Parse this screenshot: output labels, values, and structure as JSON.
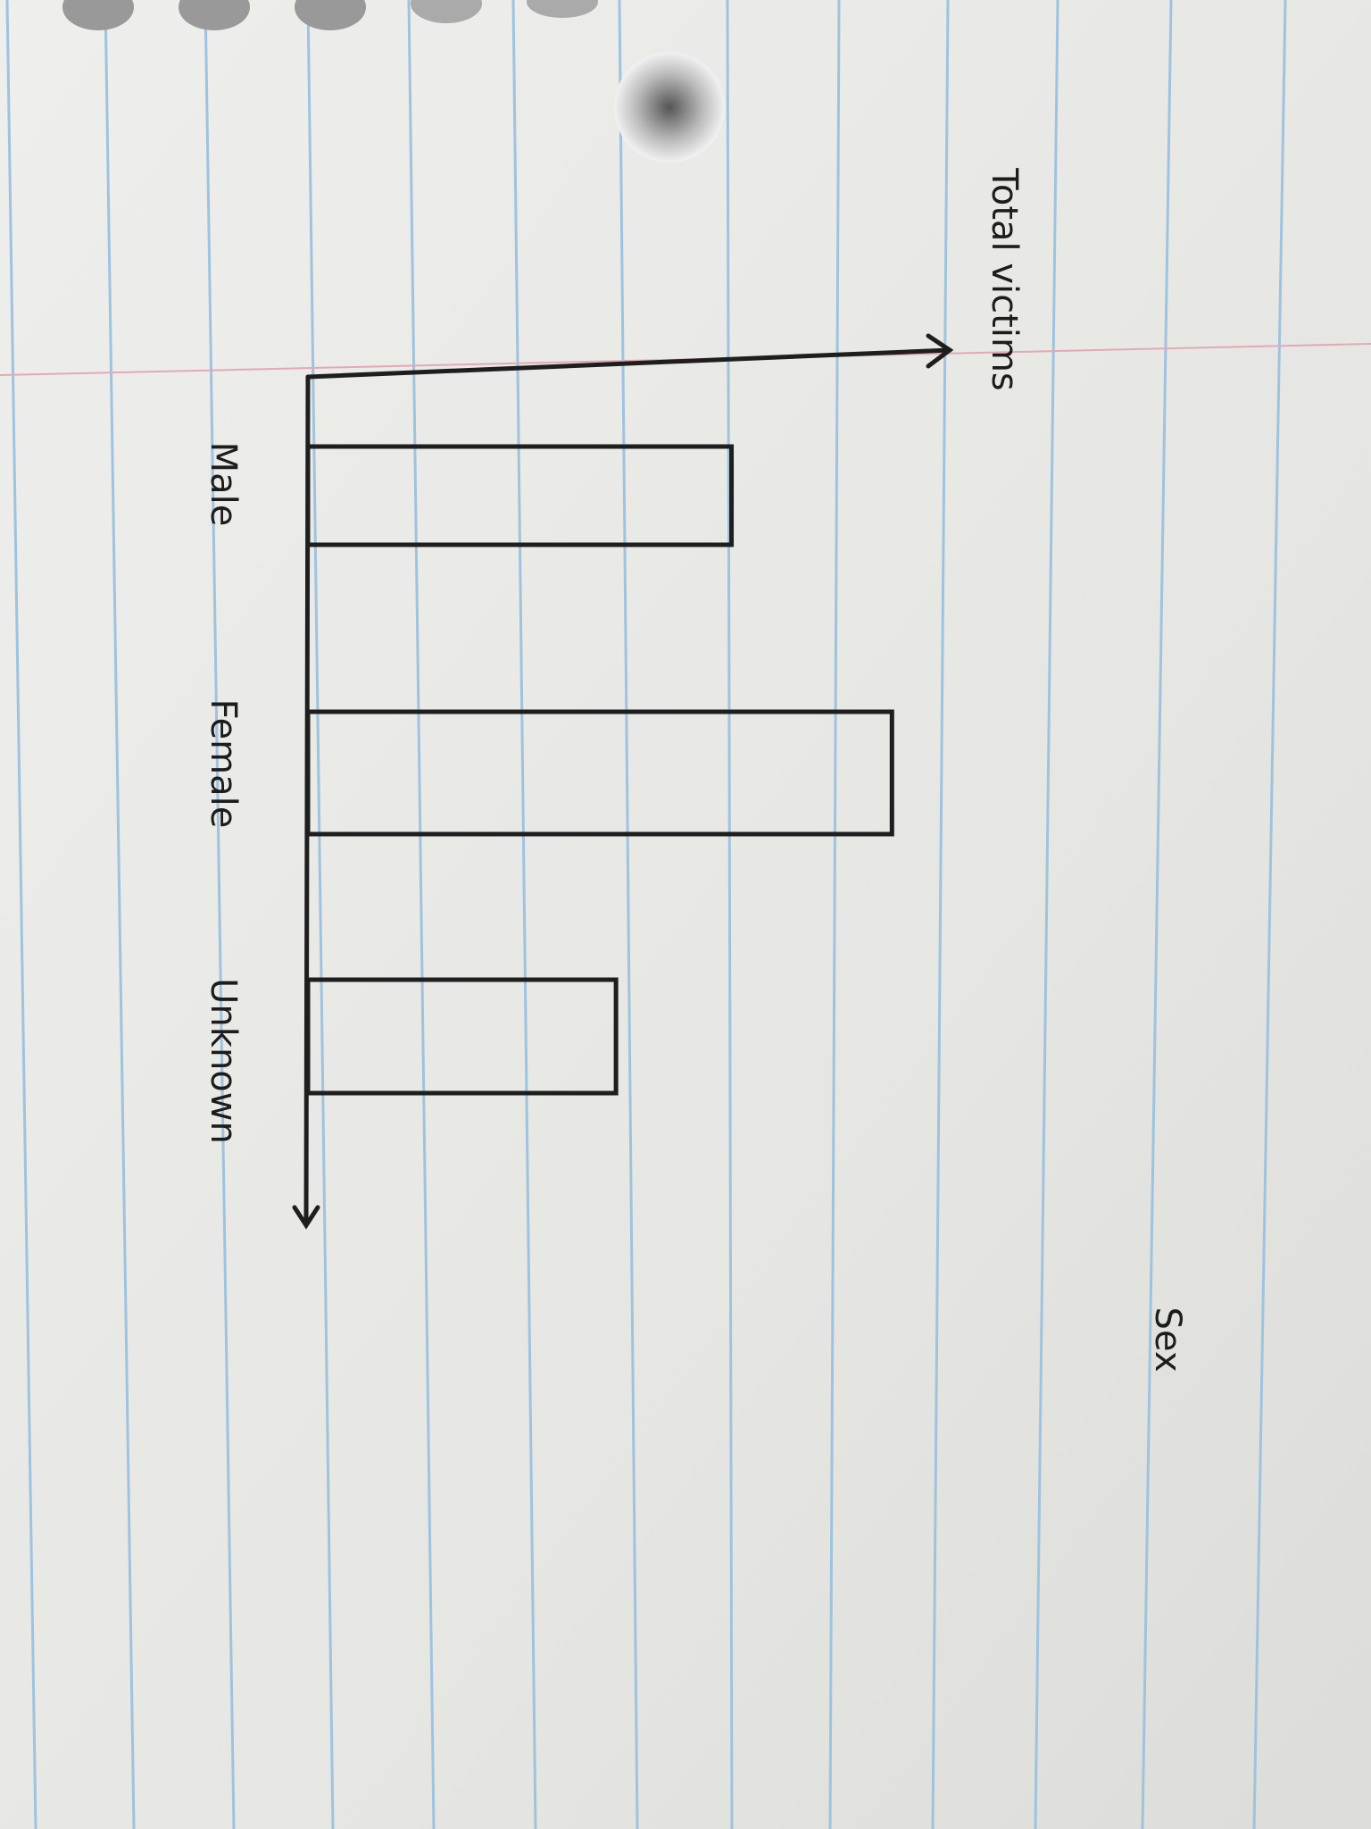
{
  "chart_data": {
    "type": "bar",
    "orientation": "horizontal",
    "title": "Total victims",
    "x_label": "Sex",
    "categories": [
      "Male",
      "Female",
      "Unknown"
    ],
    "values": [
      66,
      91,
      48
    ],
    "ylim": [
      0,
      100
    ],
    "color": "#1e1e1e"
  }
}
